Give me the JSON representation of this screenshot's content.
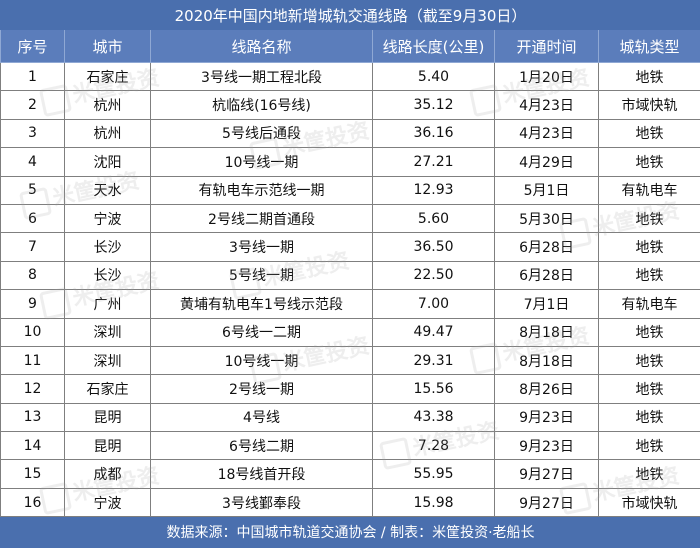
{
  "title": "2020年中国内地新增城轨交通线路（截至9月30日）",
  "columns": [
    "序号",
    "城市",
    "线路名称",
    "线路长度(公里)",
    "开通时间",
    "城轨类型"
  ],
  "rows": [
    [
      "1",
      "石家庄",
      "3号线一期工程北段",
      "5.40",
      "1月20日",
      "地铁"
    ],
    [
      "2",
      "杭州",
      "杭临线(16号线)",
      "35.12",
      "4月23日",
      "市域快轨"
    ],
    [
      "3",
      "杭州",
      "5号线后通段",
      "36.16",
      "4月23日",
      "地铁"
    ],
    [
      "4",
      "沈阳",
      "10号线一期",
      "27.21",
      "4月29日",
      "地铁"
    ],
    [
      "5",
      "天水",
      "有轨电车示范线一期",
      "12.93",
      "5月1日",
      "有轨电车"
    ],
    [
      "6",
      "宁波",
      "2号线二期首通段",
      "5.60",
      "5月30日",
      "地铁"
    ],
    [
      "7",
      "长沙",
      "3号线一期",
      "36.50",
      "6月28日",
      "地铁"
    ],
    [
      "8",
      "长沙",
      "5号线一期",
      "22.50",
      "6月28日",
      "地铁"
    ],
    [
      "9",
      "广州",
      "黄埔有轨电车1号线示范段",
      "7.00",
      "7月1日",
      "有轨电车"
    ],
    [
      "10",
      "深圳",
      "6号线一二期",
      "49.47",
      "8月18日",
      "地铁"
    ],
    [
      "11",
      "深圳",
      "10号线一期",
      "29.31",
      "8月18日",
      "地铁"
    ],
    [
      "12",
      "石家庄",
      "2号线一期",
      "15.56",
      "8月26日",
      "地铁"
    ],
    [
      "13",
      "昆明",
      "4号线",
      "43.38",
      "9月23日",
      "地铁"
    ],
    [
      "14",
      "昆明",
      "6号线二期",
      "7.28",
      "9月23日",
      "地铁"
    ],
    [
      "15",
      "成都",
      "18号线首开段",
      "55.95",
      "9月27日",
      "地铁"
    ],
    [
      "16",
      "宁波",
      "3号线鄞奉段",
      "15.98",
      "9月27日",
      "市域快轨"
    ]
  ],
  "footer": "数据来源：中国城市轨道交通协会 / 制表：米筐投资·老船长",
  "watermark": "米筐投资",
  "colors": {
    "header_bg": "#5b7dbb",
    "title_bg": "#4a6fae",
    "grid": "#7f7f7f"
  }
}
